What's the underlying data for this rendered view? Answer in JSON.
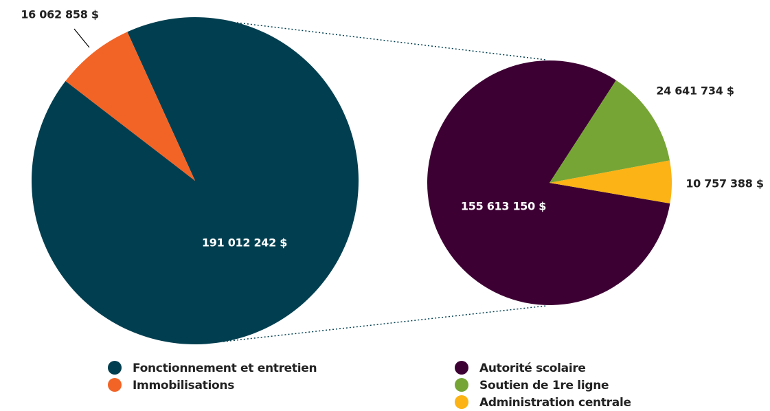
{
  "chart_data": [
    {
      "type": "pie",
      "categories": [
        "Fonctionnement et entretien",
        "Immobilisations"
      ],
      "values": [
        191012242,
        16062858
      ],
      "value_labels": [
        "191 012 242 $",
        "16 062 858 $"
      ],
      "colors": [
        "#013f50",
        "#f26426"
      ]
    },
    {
      "type": "pie",
      "categories": [
        "Autorité scolaire",
        "Soutien de 1re ligne",
        "Administration centrale"
      ],
      "values": [
        155613150,
        24641734,
        10757388
      ],
      "value_labels": [
        "155 613 150 $",
        "24 641 734 $",
        "10 757 388 $"
      ],
      "colors": [
        "#3d0033",
        "#76a535",
        "#fbb315"
      ]
    }
  ]
}
